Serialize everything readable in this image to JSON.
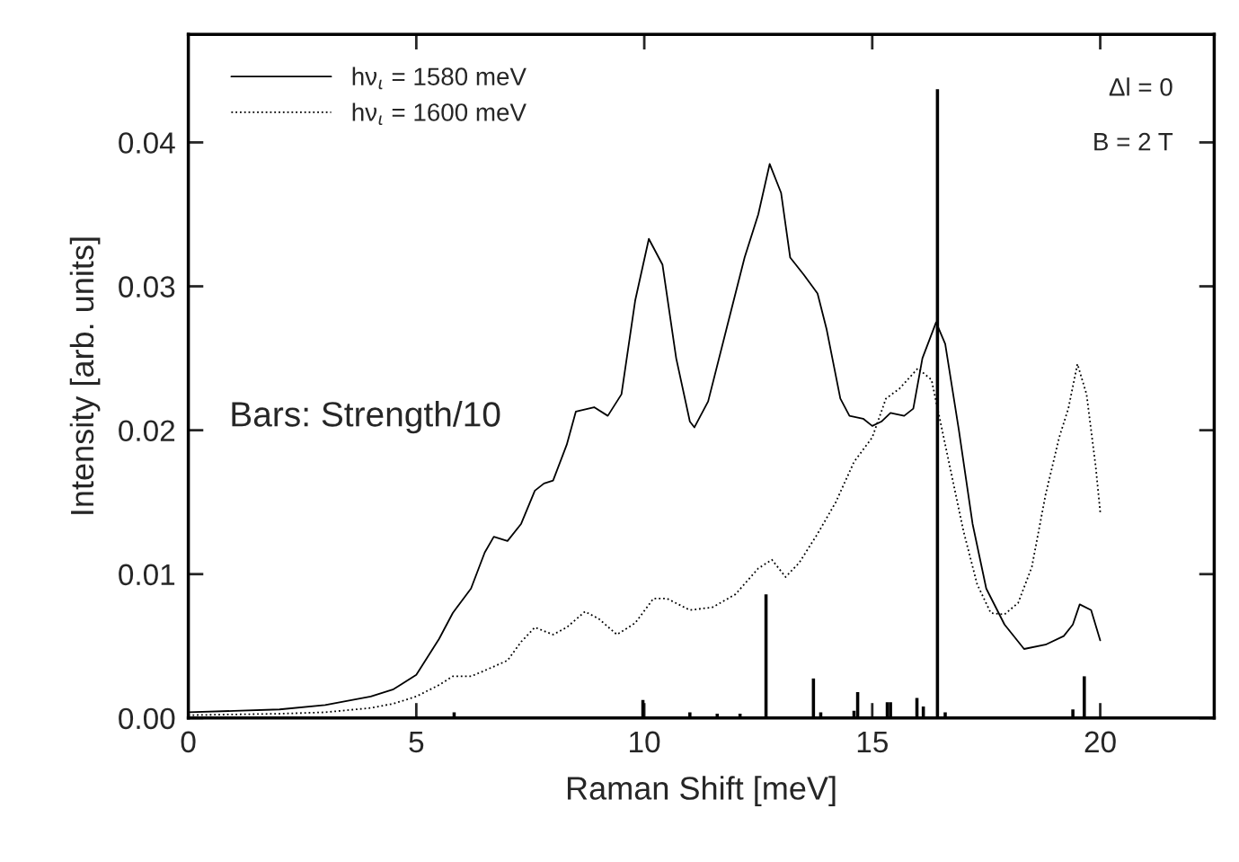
{
  "chart_data": {
    "type": "line",
    "xlabel": "Raman Shift [meV]",
    "ylabel": "Intensity [arb. units]",
    "xlim": [
      0,
      22.5
    ],
    "ylim": [
      0,
      0.0475
    ],
    "xticks": [
      0,
      5,
      10,
      15,
      20
    ],
    "yticks": [
      {
        "value": 0,
        "label": "0.00"
      },
      {
        "value": 0.01,
        "label": "0.01"
      },
      {
        "value": 0.02,
        "label": "0.02"
      },
      {
        "value": 0.03,
        "label": "0.03"
      },
      {
        "value": 0.04,
        "label": "0.04"
      }
    ],
    "legend": "top left",
    "grid": false,
    "annotations": [
      "Bars: Strength/10",
      "Δl = 0",
      "B = 2 T"
    ],
    "series": [
      {
        "name": "hν$_{ι}$ = 1580 meV",
        "line_style": "solid",
        "color": "#000000",
        "x": [
          0,
          1,
          2,
          3,
          4,
          4.5,
          5,
          5.5,
          5.8,
          6.2,
          6.5,
          6.7,
          7,
          7.3,
          7.6,
          7.8,
          8,
          8.3,
          8.5,
          8.9,
          9.2,
          9.5,
          9.8,
          10.1,
          10.4,
          10.7,
          11,
          11.1,
          11.4,
          11.8,
          12.2,
          12.5,
          12.75,
          13,
          13.2,
          13.5,
          13.8,
          14,
          14.3,
          14.5,
          14.8,
          15,
          15.2,
          15.4,
          15.7,
          15.9,
          16.1,
          16.4,
          16.6,
          16.9,
          17.2,
          17.5,
          17.9,
          18.33,
          18.8,
          19.2,
          19.4,
          19.55,
          19.8,
          20
        ],
        "values": [
          0.0004,
          0.0005,
          0.0006,
          0.0009,
          0.0015,
          0.002,
          0.003,
          0.0055,
          0.0073,
          0.009,
          0.0115,
          0.0126,
          0.0123,
          0.0135,
          0.0158,
          0.0163,
          0.0165,
          0.019,
          0.0213,
          0.0216,
          0.021,
          0.0225,
          0.029,
          0.0333,
          0.0315,
          0.025,
          0.0206,
          0.0202,
          0.022,
          0.027,
          0.032,
          0.035,
          0.0385,
          0.0365,
          0.032,
          0.0308,
          0.0295,
          0.027,
          0.0222,
          0.021,
          0.0208,
          0.0203,
          0.0206,
          0.0212,
          0.021,
          0.0215,
          0.025,
          0.0275,
          0.026,
          0.02,
          0.0135,
          0.009,
          0.0065,
          0.0048,
          0.0051,
          0.0057,
          0.0065,
          0.0079,
          0.0075,
          0.0054
        ]
      },
      {
        "name": "hν$_{ι}$ = 1600 meV",
        "line_style": "dotted",
        "color": "#000000",
        "x": [
          0,
          2,
          3,
          4,
          4.5,
          5,
          5.5,
          5.8,
          6.2,
          6.5,
          7,
          7.3,
          7.6,
          8,
          8.3,
          8.7,
          9,
          9.4,
          9.8,
          10.2,
          10.5,
          11,
          11.5,
          12,
          12.5,
          12.8,
          13.1,
          13.4,
          13.8,
          14.2,
          14.6,
          15,
          15.3,
          15.6,
          16,
          16.3,
          16.6,
          17,
          17.3,
          17.6,
          17.9,
          18.2,
          18.5,
          18.8,
          19.1,
          19.3,
          19.5,
          19.7,
          19.9,
          20
        ],
        "values": [
          0.0002,
          0.0003,
          0.0004,
          0.0007,
          0.001,
          0.0015,
          0.0023,
          0.0029,
          0.0029,
          0.0033,
          0.004,
          0.0053,
          0.0063,
          0.0058,
          0.0063,
          0.0074,
          0.0069,
          0.0058,
          0.0066,
          0.0083,
          0.0083,
          0.0075,
          0.0077,
          0.0086,
          0.0104,
          0.011,
          0.0098,
          0.0108,
          0.0128,
          0.015,
          0.0178,
          0.0195,
          0.0222,
          0.0229,
          0.0243,
          0.0235,
          0.019,
          0.013,
          0.0093,
          0.0073,
          0.0072,
          0.008,
          0.0105,
          0.0155,
          0.0195,
          0.0215,
          0.0246,
          0.0225,
          0.0175,
          0.0143
        ]
      },
      {
        "type": "bar",
        "color": "#000000",
        "x": [
          5.83,
          9.97,
          11.0,
          11.6,
          12.1,
          12.67,
          13.71,
          13.87,
          14.6,
          14.68,
          15.33,
          15.4,
          15.98,
          16.12,
          16.43,
          16.6,
          19.4,
          19.65
        ],
        "values": [
          0.0004,
          0.00125,
          0.0004,
          0.0003,
          0.0003,
          0.0086,
          0.00275,
          0.0004,
          0.0005,
          0.0018,
          0.0011,
          0.0011,
          0.0014,
          0.0008,
          0.0437,
          0.0004,
          0.0006,
          0.0029
        ]
      }
    ]
  }
}
